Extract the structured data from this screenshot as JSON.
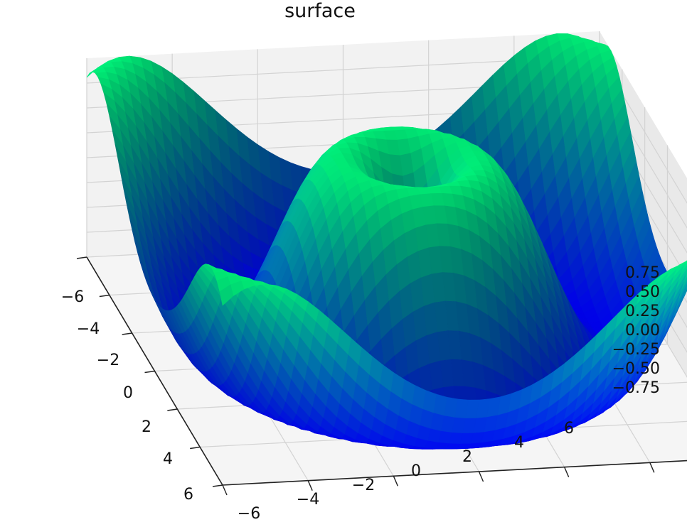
{
  "chart_data": {
    "type": "surface",
    "title": "surface",
    "function": "sin(sqrt(x^2 + y^2))",
    "colormap": "winter",
    "x": {
      "range": [
        -6,
        6
      ],
      "ticks": [
        -6,
        -4,
        -2,
        0,
        2,
        4,
        6
      ],
      "tick_labels": [
        "−6",
        "−4",
        "−2",
        "0",
        "2",
        "4",
        "6"
      ]
    },
    "y": {
      "range": [
        -6,
        6
      ],
      "ticks": [
        -6,
        -4,
        -2,
        0,
        2,
        4,
        6
      ],
      "tick_labels": [
        "−6",
        "−4",
        "−2",
        "0",
        "2",
        "4",
        "6"
      ]
    },
    "z": {
      "range": [
        -1,
        1
      ],
      "ticks": [
        0.75,
        0.5,
        0.25,
        0,
        -0.25,
        -0.5,
        -0.75
      ],
      "tick_labels": [
        "0.75",
        "0.50",
        "0.25",
        "0.00",
        "−0.25",
        "−0.50",
        "−0.75"
      ]
    },
    "grid": true,
    "view": {
      "elevation": 60,
      "azimuth": -20
    }
  }
}
